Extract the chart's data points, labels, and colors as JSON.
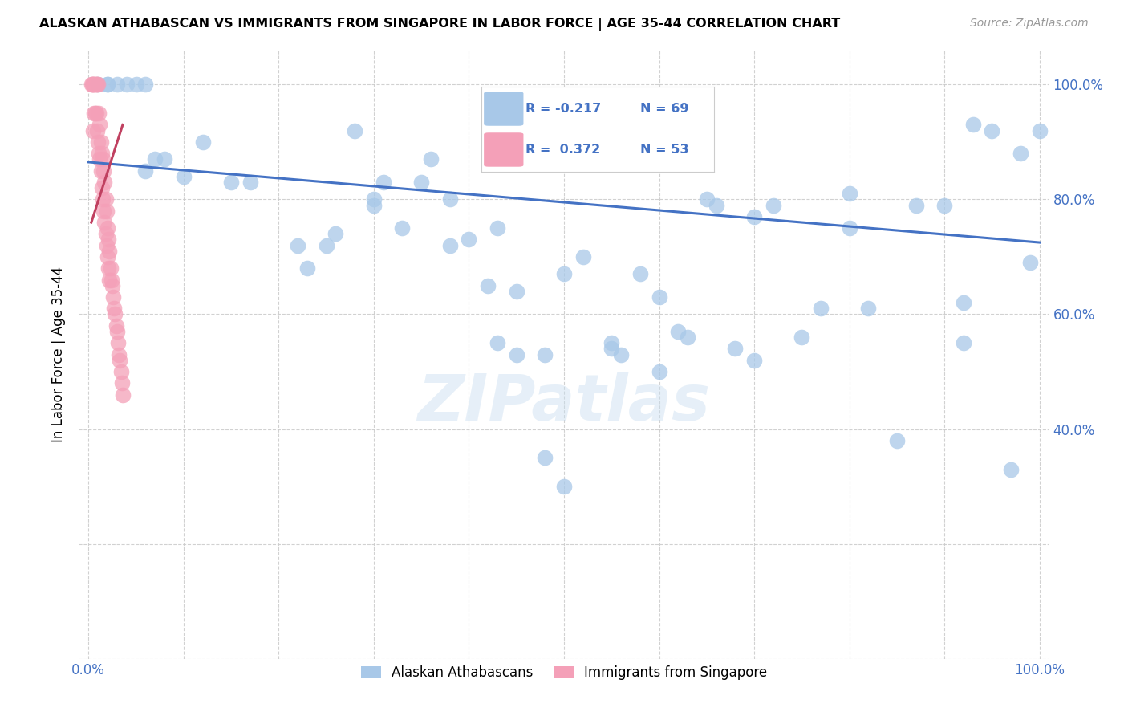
{
  "title": "ALASKAN ATHABASCAN VS IMMIGRANTS FROM SINGAPORE IN LABOR FORCE | AGE 35-44 CORRELATION CHART",
  "source": "Source: ZipAtlas.com",
  "ylabel": "In Labor Force | Age 35-44",
  "legend_label1": "Alaskan Athabascans",
  "legend_label2": "Immigrants from Singapore",
  "R1": -0.217,
  "N1": 69,
  "R2": 0.372,
  "N2": 53,
  "blue_color": "#a8c8e8",
  "pink_color": "#f4a0b8",
  "line_blue": "#4472c4",
  "line_pink": "#c04060",
  "watermark": "ZIPatlas",
  "blue_points_x": [
    0.01,
    0.02,
    0.02,
    0.03,
    0.04,
    0.05,
    0.06,
    0.06,
    0.07,
    0.08,
    0.1,
    0.12,
    0.15,
    0.17,
    0.22,
    0.23,
    0.25,
    0.26,
    0.28,
    0.3,
    0.3,
    0.31,
    0.33,
    0.35,
    0.36,
    0.38,
    0.4,
    0.42,
    0.43,
    0.45,
    0.48,
    0.5,
    0.52,
    0.55,
    0.56,
    0.58,
    0.6,
    0.62,
    0.63,
    0.65,
    0.66,
    0.68,
    0.7,
    0.72,
    0.75,
    0.77,
    0.8,
    0.82,
    0.85,
    0.87,
    0.9,
    0.92,
    0.93,
    0.95,
    0.97,
    0.98,
    1.0,
    0.5,
    0.48,
    0.55,
    0.6,
    0.7,
    0.8,
    0.92,
    0.99,
    0.43,
    0.38,
    0.5,
    0.45
  ],
  "blue_points_y": [
    1.0,
    1.0,
    1.0,
    1.0,
    1.0,
    1.0,
    1.0,
    0.85,
    0.87,
    0.87,
    0.84,
    0.9,
    0.83,
    0.83,
    0.72,
    0.68,
    0.72,
    0.74,
    0.92,
    0.8,
    0.79,
    0.83,
    0.75,
    0.83,
    0.87,
    0.8,
    0.73,
    0.65,
    0.55,
    0.53,
    0.53,
    0.87,
    0.7,
    0.54,
    0.53,
    0.67,
    0.63,
    0.57,
    0.56,
    0.8,
    0.79,
    0.54,
    0.77,
    0.79,
    0.56,
    0.61,
    0.81,
    0.61,
    0.38,
    0.79,
    0.79,
    0.62,
    0.93,
    0.92,
    0.33,
    0.88,
    0.92,
    0.3,
    0.35,
    0.55,
    0.5,
    0.52,
    0.75,
    0.55,
    0.69,
    0.75,
    0.72,
    0.67,
    0.64
  ],
  "pink_points_x": [
    0.003,
    0.004,
    0.005,
    0.005,
    0.005,
    0.006,
    0.006,
    0.007,
    0.007,
    0.008,
    0.008,
    0.009,
    0.009,
    0.01,
    0.01,
    0.011,
    0.011,
    0.012,
    0.012,
    0.013,
    0.013,
    0.014,
    0.014,
    0.015,
    0.015,
    0.016,
    0.016,
    0.017,
    0.017,
    0.018,
    0.018,
    0.019,
    0.019,
    0.02,
    0.02,
    0.021,
    0.021,
    0.022,
    0.022,
    0.023,
    0.024,
    0.025,
    0.026,
    0.027,
    0.028,
    0.029,
    0.03,
    0.031,
    0.032,
    0.033,
    0.034,
    0.035,
    0.036
  ],
  "pink_points_y": [
    1.0,
    1.0,
    1.0,
    1.0,
    0.92,
    1.0,
    0.95,
    1.0,
    0.95,
    1.0,
    0.95,
    1.0,
    0.92,
    1.0,
    0.9,
    0.95,
    0.88,
    0.93,
    0.87,
    0.9,
    0.85,
    0.88,
    0.82,
    0.87,
    0.8,
    0.85,
    0.78,
    0.83,
    0.76,
    0.8,
    0.74,
    0.78,
    0.72,
    0.75,
    0.7,
    0.73,
    0.68,
    0.71,
    0.66,
    0.68,
    0.66,
    0.65,
    0.63,
    0.61,
    0.6,
    0.58,
    0.57,
    0.55,
    0.53,
    0.52,
    0.5,
    0.48,
    0.46
  ],
  "xlim": [
    -0.01,
    1.01
  ],
  "ylim": [
    0.0,
    1.06
  ],
  "blue_line_x": [
    0.0,
    1.0
  ],
  "blue_line_y": [
    0.865,
    0.725
  ],
  "pink_line_x": [
    0.003,
    0.036
  ],
  "pink_line_y": [
    0.76,
    0.93
  ],
  "x_ticks": [
    0.0,
    0.1,
    0.2,
    0.3,
    0.4,
    0.5,
    0.6,
    0.7,
    0.8,
    0.9,
    1.0
  ],
  "y_ticks_right": [
    0.4,
    0.6,
    0.8,
    1.0
  ],
  "right_tick_labels": [
    "40.0%",
    "60.0%",
    "80.0%",
    "100.0%"
  ]
}
